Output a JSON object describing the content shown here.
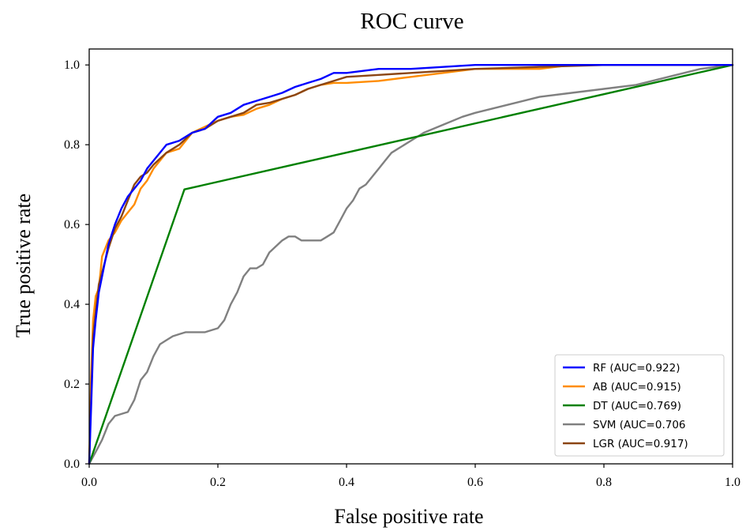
{
  "chart_data": {
    "type": "line",
    "title": "ROC curve",
    "xlabel": "False positive rate",
    "ylabel": "True positive rate",
    "xlim": [
      0.0,
      1.0
    ],
    "ylim": [
      0.0,
      1.04
    ],
    "xticks": [
      0.0,
      0.2,
      0.4,
      0.6,
      0.8,
      1.0
    ],
    "xtick_labels": [
      "0.0",
      "0.2",
      "0.4",
      "0.6",
      "0.8",
      "1.0"
    ],
    "yticks": [
      0.0,
      0.2,
      0.4,
      0.6,
      0.8,
      1.0
    ],
    "ytick_labels": [
      "0.0",
      "0.2",
      "0.4",
      "0.6",
      "0.8",
      "1.0"
    ],
    "grid": false,
    "legend_position": "lower-right",
    "series": [
      {
        "name": "RF (AUC=0.922)",
        "color": "#0000ff",
        "x": [
          0.0,
          0.003,
          0.006,
          0.01,
          0.015,
          0.02,
          0.03,
          0.04,
          0.05,
          0.06,
          0.07,
          0.08,
          0.09,
          0.1,
          0.12,
          0.14,
          0.16,
          0.18,
          0.2,
          0.22,
          0.24,
          0.26,
          0.28,
          0.3,
          0.32,
          0.34,
          0.36,
          0.38,
          0.4,
          0.45,
          0.5,
          0.55,
          0.6,
          0.7,
          0.8,
          0.9,
          1.0
        ],
        "y": [
          0.0,
          0.14,
          0.29,
          0.36,
          0.43,
          0.47,
          0.55,
          0.6,
          0.64,
          0.67,
          0.69,
          0.71,
          0.74,
          0.76,
          0.8,
          0.81,
          0.83,
          0.84,
          0.87,
          0.88,
          0.9,
          0.91,
          0.92,
          0.93,
          0.945,
          0.955,
          0.965,
          0.98,
          0.98,
          0.99,
          0.99,
          0.995,
          1.0,
          1.0,
          1.0,
          1.0,
          1.0
        ]
      },
      {
        "name": "AB (AUC=0.915)",
        "color": "#ff8c00",
        "x": [
          0.0,
          0.003,
          0.006,
          0.01,
          0.015,
          0.02,
          0.03,
          0.04,
          0.05,
          0.06,
          0.07,
          0.08,
          0.09,
          0.1,
          0.12,
          0.14,
          0.16,
          0.18,
          0.2,
          0.22,
          0.24,
          0.26,
          0.28,
          0.3,
          0.32,
          0.34,
          0.36,
          0.38,
          0.4,
          0.45,
          0.5,
          0.55,
          0.6,
          0.7,
          0.75,
          0.8,
          0.9,
          1.0
        ],
        "y": [
          0.0,
          0.22,
          0.36,
          0.42,
          0.44,
          0.52,
          0.56,
          0.58,
          0.61,
          0.63,
          0.65,
          0.69,
          0.71,
          0.74,
          0.78,
          0.79,
          0.83,
          0.845,
          0.86,
          0.87,
          0.875,
          0.89,
          0.9,
          0.915,
          0.925,
          0.94,
          0.95,
          0.955,
          0.955,
          0.96,
          0.97,
          0.98,
          0.99,
          0.99,
          1.0,
          1.0,
          1.0,
          1.0
        ]
      },
      {
        "name": "DT (AUC=0.769)",
        "color": "#008000",
        "x": [
          0.0,
          0.148,
          1.0
        ],
        "y": [
          0.0,
          0.688,
          1.0
        ]
      },
      {
        "name": "SVM (AUC=0.706",
        "color": "#808080",
        "x": [
          0.0,
          0.01,
          0.02,
          0.03,
          0.04,
          0.06,
          0.07,
          0.08,
          0.09,
          0.1,
          0.11,
          0.12,
          0.13,
          0.14,
          0.15,
          0.18,
          0.2,
          0.21,
          0.22,
          0.23,
          0.24,
          0.25,
          0.26,
          0.27,
          0.28,
          0.3,
          0.31,
          0.32,
          0.33,
          0.35,
          0.36,
          0.37,
          0.38,
          0.39,
          0.4,
          0.41,
          0.42,
          0.43,
          0.44,
          0.45,
          0.46,
          0.47,
          0.48,
          0.49,
          0.5,
          0.52,
          0.55,
          0.58,
          0.6,
          0.65,
          0.7,
          0.75,
          0.8,
          0.85,
          0.9,
          0.95,
          1.0
        ],
        "y": [
          0.0,
          0.03,
          0.06,
          0.1,
          0.12,
          0.13,
          0.16,
          0.21,
          0.23,
          0.27,
          0.3,
          0.31,
          0.32,
          0.325,
          0.33,
          0.33,
          0.34,
          0.36,
          0.4,
          0.43,
          0.47,
          0.49,
          0.49,
          0.5,
          0.53,
          0.56,
          0.57,
          0.57,
          0.56,
          0.56,
          0.56,
          0.57,
          0.58,
          0.61,
          0.64,
          0.66,
          0.69,
          0.7,
          0.72,
          0.74,
          0.76,
          0.78,
          0.79,
          0.8,
          0.81,
          0.83,
          0.85,
          0.87,
          0.88,
          0.9,
          0.92,
          0.93,
          0.94,
          0.95,
          0.97,
          0.99,
          1.0
        ]
      },
      {
        "name": "LGR (AUC=0.917)",
        "color": "#8b4513",
        "x": [
          0.0,
          0.003,
          0.006,
          0.01,
          0.015,
          0.02,
          0.03,
          0.04,
          0.05,
          0.06,
          0.07,
          0.08,
          0.09,
          0.1,
          0.12,
          0.14,
          0.16,
          0.18,
          0.2,
          0.22,
          0.24,
          0.26,
          0.28,
          0.3,
          0.32,
          0.34,
          0.36,
          0.38,
          0.4,
          0.45,
          0.5,
          0.55,
          0.6,
          0.7,
          0.8,
          0.9,
          1.0
        ],
        "y": [
          0.0,
          0.17,
          0.32,
          0.38,
          0.45,
          0.48,
          0.54,
          0.59,
          0.62,
          0.66,
          0.7,
          0.72,
          0.73,
          0.75,
          0.78,
          0.8,
          0.83,
          0.84,
          0.86,
          0.87,
          0.88,
          0.9,
          0.905,
          0.915,
          0.925,
          0.94,
          0.95,
          0.96,
          0.97,
          0.975,
          0.98,
          0.985,
          0.99,
          0.995,
          1.0,
          1.0,
          1.0
        ]
      }
    ]
  }
}
